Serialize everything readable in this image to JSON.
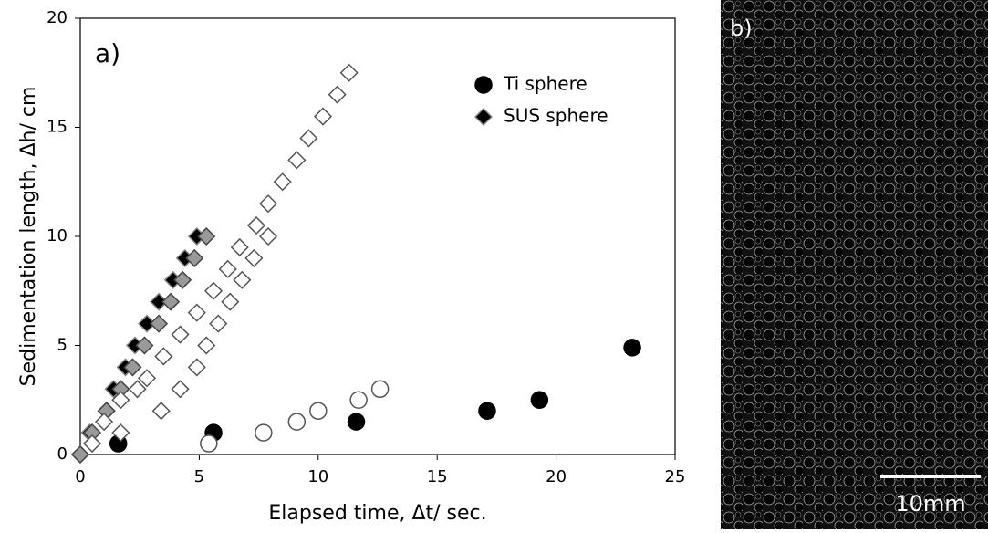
{
  "chart_data": {
    "type": "scatter",
    "panel_label": "a)",
    "xlabel": "Elapsed time, Δt/ sec.",
    "ylabel": "Sedimentation length, Δh/ cm",
    "xlim": [
      0,
      25
    ],
    "ylim": [
      0,
      20
    ],
    "xticks": [
      0,
      5,
      10,
      15,
      20,
      25
    ],
    "yticks": [
      0,
      5,
      10,
      15,
      20
    ],
    "legend": "upper right",
    "series": [
      {
        "name": "Ti sphere",
        "marker": "circle",
        "color": "#000000",
        "edgecolor": "#000000",
        "x": [
          1.6,
          5.6,
          11.6,
          17.1,
          19.3,
          23.2
        ],
        "values": [
          0.5,
          1,
          1.5,
          2,
          2.5,
          4.9
        ]
      },
      {
        "marker": "circle",
        "color": "#ffffff",
        "edgecolor": "#555555",
        "x": [
          5.4,
          7.7,
          9.1,
          10,
          11.7,
          12.6
        ],
        "values": [
          0.5,
          1,
          1.5,
          2,
          2.5,
          3
        ]
      },
      {
        "name": "SUS sphere",
        "marker": "diamond",
        "color": "#000000",
        "edgecolor": "#888888",
        "x": [
          0,
          0.4,
          1.1,
          1.4,
          1.9,
          2.3,
          2.8,
          3.3,
          3.9,
          4.4,
          4.9
        ],
        "values": [
          0,
          1,
          2,
          3,
          4,
          5,
          6,
          7,
          8,
          9,
          10
        ]
      },
      {
        "marker": "diamond",
        "color": "#999999",
        "edgecolor": "#444444",
        "x": [
          0,
          0.5,
          1.1,
          1.7,
          2.2,
          2.7,
          3.3,
          3.8,
          4.3,
          4.8,
          5.3
        ],
        "values": [
          0,
          1,
          2,
          3,
          4,
          5,
          6,
          7,
          8,
          9,
          10
        ]
      },
      {
        "marker": "diamond",
        "color": "#ffffff",
        "edgecolor": "#555555",
        "x": [
          0.5,
          1.0,
          1.7,
          2.4,
          2.8,
          3.5,
          4.2,
          4.9,
          5.6,
          6.2,
          6.7,
          7.4,
          7.9,
          8.5,
          9.1,
          9.6,
          10.2,
          10.8,
          11.3
        ],
        "values": [
          0.5,
          1.5,
          2.5,
          3,
          3.5,
          4.5,
          5.5,
          6.5,
          7.5,
          8.5,
          9.5,
          10.5,
          11.5,
          12.5,
          13.5,
          14.5,
          15.5,
          16.5,
          17.5
        ]
      },
      {
        "marker": "diamond",
        "color": "#ffffff",
        "edgecolor": "#555555",
        "x": [
          1.7,
          3.4,
          4.2,
          4.9,
          5.3,
          5.8,
          6.3,
          6.8,
          7.3,
          7.9
        ],
        "values": [
          1,
          2,
          3,
          4,
          5,
          6,
          7,
          8,
          9,
          10
        ]
      }
    ]
  },
  "image_panel": {
    "label": "b)",
    "scale_label": "10mm"
  }
}
